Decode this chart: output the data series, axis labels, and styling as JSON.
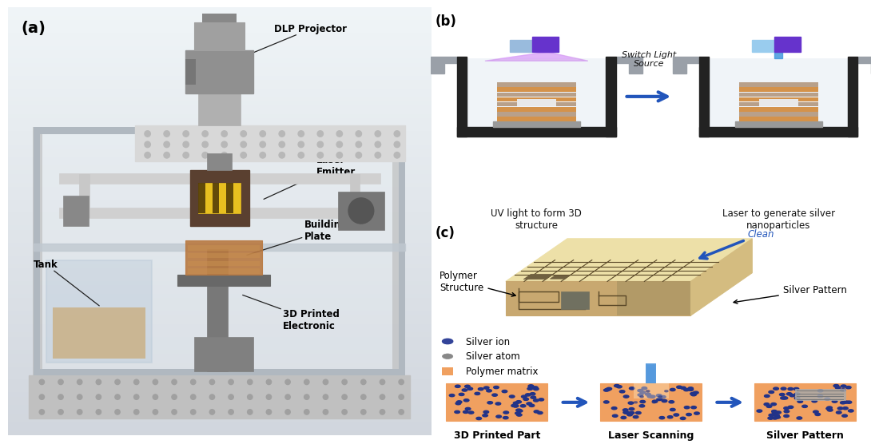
{
  "bg_color": "#ffffff",
  "panel_a_label": "(a)",
  "panel_b_label": "(b)",
  "panel_c_label": "(c)",
  "label_b1": "UV light to form 3D\nstructure",
  "label_b2": "Switch Light\nSource",
  "label_b3": "Laser to generate silver\nnanoparticles",
  "label_c1": "Polymer\nStructure",
  "label_c2": "Clean",
  "label_c3": "Silver Pattern",
  "legend_items": [
    "Silver ion",
    "Silver atom",
    "Polymer matrix"
  ],
  "label_step1": "3D Printed Part",
  "label_step2": "Laser Scanning",
  "label_step3": "Silver Pattern",
  "orange_color": "#F0A060",
  "blue_arrow_color": "#2255BB",
  "purple_color": "#6633CC",
  "tan_light": "#EDE0B0",
  "tan_mid": "#C8A870",
  "tan_dark": "#8B7040",
  "gray_wall": "#888888",
  "chamber_bg": "#E8EEF4"
}
